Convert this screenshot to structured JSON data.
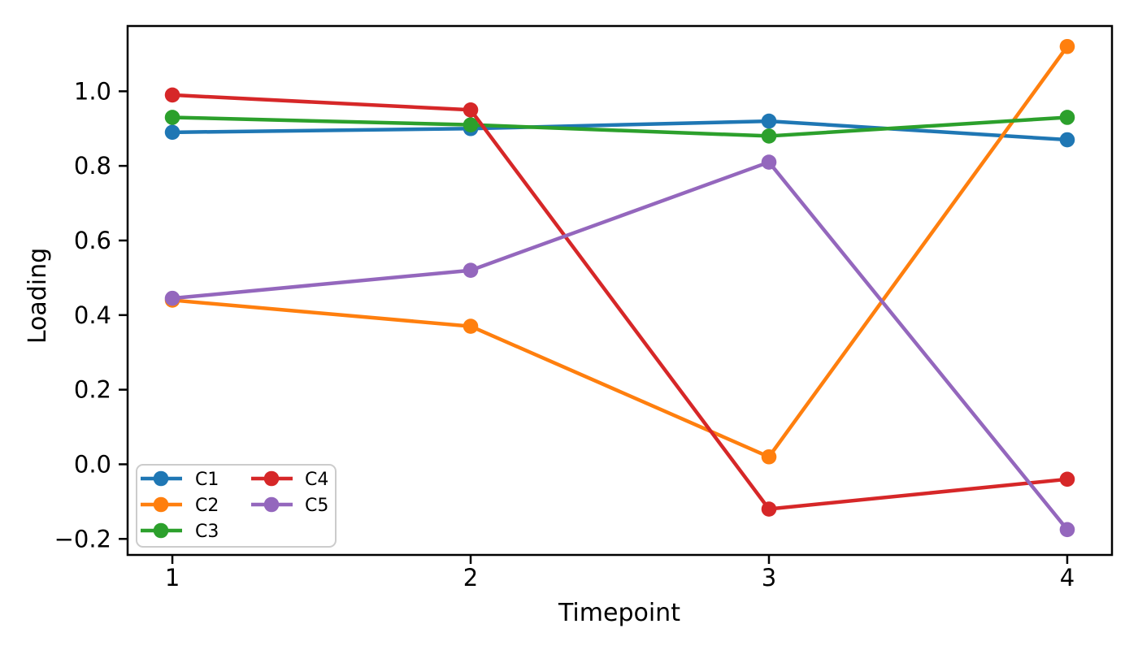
{
  "figure": {
    "background": "#ffffff",
    "text_color": "#000000",
    "axis_color": "#000000",
    "legend_border_color": "#cccccc"
  },
  "chart_data": {
    "type": "line",
    "title": "",
    "xlabel": "Timepoint",
    "ylabel": "Loading",
    "x": [
      1,
      2,
      3,
      4
    ],
    "series": [
      {
        "name": "C1",
        "color": "#1f77b4",
        "values": [
          0.89,
          0.9,
          0.92,
          0.87
        ]
      },
      {
        "name": "C2",
        "color": "#ff7f0e",
        "values": [
          0.44,
          0.37,
          0.02,
          1.12
        ]
      },
      {
        "name": "C3",
        "color": "#2ca02c",
        "values": [
          0.93,
          0.91,
          0.88,
          0.93
        ]
      },
      {
        "name": "C4",
        "color": "#d62728",
        "values": [
          0.99,
          0.95,
          -0.12,
          -0.04
        ]
      },
      {
        "name": "C5",
        "color": "#9467bd",
        "values": [
          0.445,
          0.52,
          0.81,
          -0.175
        ]
      }
    ],
    "xticks": [
      1,
      2,
      3,
      4
    ],
    "yticks": [
      -0.2,
      0.0,
      0.2,
      0.4,
      0.6,
      0.8,
      1.0
    ],
    "xlim": [
      0.85,
      4.15
    ],
    "ylim": [
      -0.243,
      1.175
    ],
    "grid": false,
    "legend": {
      "position": "lower left",
      "columns": 2,
      "labels": [
        "C1",
        "C2",
        "C3",
        "C4",
        "C5"
      ]
    }
  }
}
